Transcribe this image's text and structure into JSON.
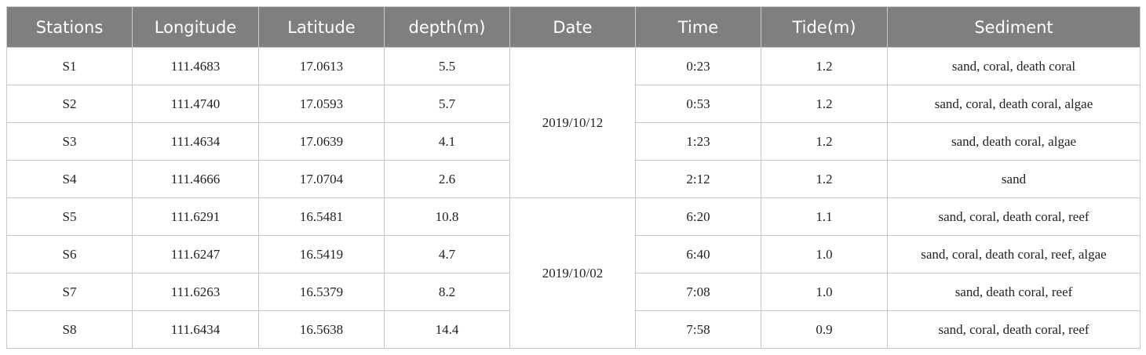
{
  "table": {
    "headers": [
      "Stations",
      "Longitude",
      "Latitude",
      "depth(m)",
      "Date",
      "Time",
      "Tide(m)",
      "Sediment"
    ],
    "groups": [
      {
        "date": "2019/10/12",
        "rows": [
          [
            "S1",
            "111.4683",
            "17.0613",
            "5.5",
            "0:23",
            "1.2",
            "sand, coral, death coral"
          ],
          [
            "S2",
            "111.4740",
            "17.0593",
            "5.7",
            "0:53",
            "1.2",
            "sand, coral, death coral, algae"
          ],
          [
            "S3",
            "111.4634",
            "17.0639",
            "4.1",
            "1:23",
            "1.2",
            "sand, death coral, algae"
          ],
          [
            "S4",
            "111.4666",
            "17.0704",
            "2.6",
            "2:12",
            "1.2",
            "sand"
          ]
        ]
      },
      {
        "date": "2019/10/02",
        "rows": [
          [
            "S5",
            "111.6291",
            "16.5481",
            "10.8",
            "6:20",
            "1.1",
            "sand, coral, death coral, reef"
          ],
          [
            "S6",
            "111.6247",
            "16.5419",
            "4.7",
            "6:40",
            "1.0",
            "sand, coral, death coral, reef, algae"
          ],
          [
            "S7",
            "111.6263",
            "16.5379",
            "8.2",
            "7:08",
            "1.0",
            "sand, death coral, reef"
          ],
          [
            "S8",
            "111.6434",
            "16.5638",
            "14.4",
            "7:58",
            "0.9",
            "sand, coral, death coral, reef"
          ]
        ]
      }
    ]
  }
}
